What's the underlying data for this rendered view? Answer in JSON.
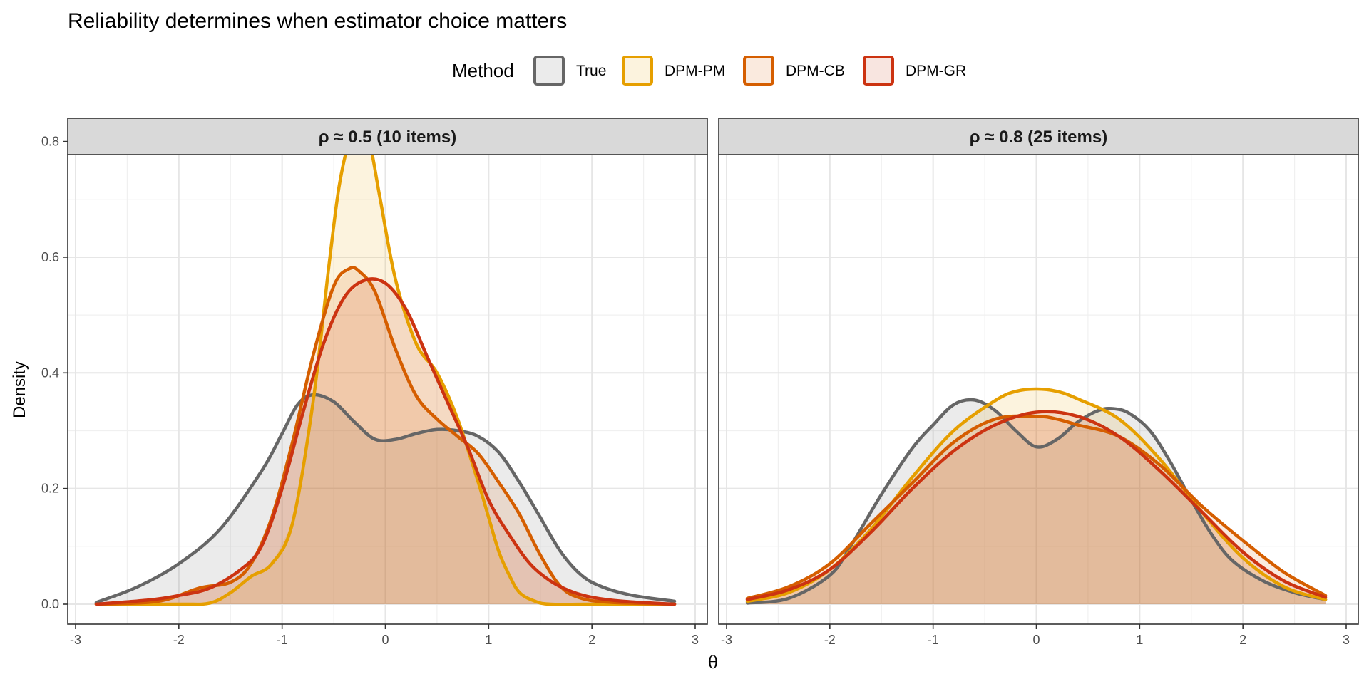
{
  "colors": {
    "True": "#666666",
    "DPM-PM": "#E69F00",
    "DPM-CB": "#D55E00",
    "DPM-GR": "#CC3311"
  },
  "chart_data": {
    "type": "area",
    "title": "Reliability determines when estimator choice matters",
    "xlabel": "θ",
    "ylabel": "Density",
    "legend": {
      "title": "Method",
      "position": "top",
      "entries": [
        "True",
        "DPM-PM",
        "DPM-CB",
        "DPM-GR"
      ]
    },
    "xlim": [
      -3,
      3
    ],
    "ylim": [
      0,
      0.85
    ],
    "xticks": [
      -3,
      -2,
      -1,
      0,
      1,
      2,
      3
    ],
    "yticks": [
      0.0,
      0.2,
      0.4,
      0.6,
      0.8
    ],
    "ytick_labels": [
      "0.0",
      "0.2",
      "0.4",
      "0.6",
      "0.8"
    ],
    "grid": true,
    "panels": [
      {
        "label": "ρ ≈ 0.5  (10 items)",
        "series": [
          {
            "name": "True",
            "x": [
              -2.8,
              -2.4,
              -2.0,
              -1.6,
              -1.2,
              -1.0,
              -0.85,
              -0.7,
              -0.5,
              -0.3,
              -0.1,
              0.1,
              0.3,
              0.5,
              0.7,
              0.9,
              1.1,
              1.3,
              1.5,
              1.7,
              1.9,
              2.1,
              2.4,
              2.8
            ],
            "y": [
              0.003,
              0.03,
              0.07,
              0.13,
              0.23,
              0.295,
              0.345,
              0.362,
              0.35,
              0.315,
              0.285,
              0.285,
              0.295,
              0.302,
              0.3,
              0.29,
              0.262,
              0.21,
              0.15,
              0.09,
              0.05,
              0.03,
              0.015,
              0.005
            ]
          },
          {
            "name": "DPM-PM",
            "x": [
              -2.8,
              -2.0,
              -1.7,
              -1.5,
              -1.3,
              -1.1,
              -0.9,
              -0.7,
              -0.55,
              -0.45,
              -0.35,
              -0.25,
              -0.15,
              -0.05,
              0.1,
              0.3,
              0.5,
              0.7,
              0.9,
              1.0,
              1.1,
              1.2,
              1.3,
              1.45,
              1.6,
              2.0,
              2.8
            ],
            "y": [
              0.0,
              0.0,
              0.002,
              0.02,
              0.048,
              0.07,
              0.14,
              0.35,
              0.58,
              0.72,
              0.8,
              0.826,
              0.795,
              0.7,
              0.56,
              0.45,
              0.4,
              0.32,
              0.21,
              0.15,
              0.09,
              0.05,
              0.02,
              0.005,
              0.0,
              0.0,
              0.0
            ]
          },
          {
            "name": "DPM-CB",
            "x": [
              -2.8,
              -2.2,
              -1.8,
              -1.5,
              -1.3,
              -1.1,
              -0.9,
              -0.7,
              -0.5,
              -0.35,
              -0.25,
              -0.1,
              0.1,
              0.3,
              0.5,
              0.7,
              0.9,
              1.1,
              1.3,
              1.5,
              1.7,
              1.9,
              2.2,
              2.8
            ],
            "y": [
              0.0,
              0.005,
              0.028,
              0.038,
              0.07,
              0.15,
              0.28,
              0.43,
              0.55,
              0.58,
              0.575,
              0.54,
              0.44,
              0.36,
              0.32,
              0.29,
              0.26,
              0.21,
              0.155,
              0.085,
              0.03,
              0.01,
              0.003,
              0.0
            ]
          },
          {
            "name": "DPM-GR",
            "x": [
              -2.8,
              -2.3,
              -2.0,
              -1.7,
              -1.4,
              -1.2,
              -1.0,
              -0.8,
              -0.6,
              -0.4,
              -0.2,
              0.0,
              0.2,
              0.4,
              0.6,
              0.8,
              1.0,
              1.2,
              1.4,
              1.6,
              1.8,
              2.0,
              2.3,
              2.8
            ],
            "y": [
              0.0,
              0.007,
              0.015,
              0.028,
              0.06,
              0.1,
              0.2,
              0.33,
              0.45,
              0.53,
              0.56,
              0.555,
              0.51,
              0.43,
              0.35,
              0.27,
              0.18,
              0.12,
              0.07,
              0.04,
              0.022,
              0.012,
              0.005,
              0.0
            ]
          }
        ]
      },
      {
        "label": "ρ ≈ 0.8  (25 items)",
        "series": [
          {
            "name": "True",
            "x": [
              -2.8,
              -2.4,
              -2.0,
              -1.8,
              -1.5,
              -1.2,
              -1.0,
              -0.8,
              -0.6,
              -0.4,
              -0.2,
              0.0,
              0.2,
              0.4,
              0.6,
              0.75,
              0.9,
              1.1,
              1.3,
              1.5,
              1.7,
              1.9,
              2.2,
              2.5,
              2.8
            ],
            "y": [
              0.002,
              0.01,
              0.05,
              0.1,
              0.19,
              0.27,
              0.31,
              0.345,
              0.353,
              0.335,
              0.3,
              0.272,
              0.285,
              0.315,
              0.335,
              0.338,
              0.33,
              0.3,
              0.245,
              0.18,
              0.12,
              0.075,
              0.04,
              0.02,
              0.008
            ]
          },
          {
            "name": "DPM-PM",
            "x": [
              -2.8,
              -2.4,
              -2.0,
              -1.6,
              -1.2,
              -0.8,
              -0.4,
              -0.2,
              0.0,
              0.2,
              0.4,
              0.8,
              1.2,
              1.6,
              2.0,
              2.4,
              2.8
            ],
            "y": [
              0.005,
              0.02,
              0.06,
              0.13,
              0.22,
              0.3,
              0.352,
              0.368,
              0.372,
              0.368,
              0.355,
              0.32,
              0.25,
              0.16,
              0.08,
              0.03,
              0.008
            ]
          },
          {
            "name": "DPM-CB",
            "x": [
              -2.8,
              -2.4,
              -2.0,
              -1.6,
              -1.2,
              -0.8,
              -0.4,
              0.0,
              0.2,
              0.4,
              0.8,
              1.2,
              1.6,
              2.0,
              2.4,
              2.8
            ],
            "y": [
              0.01,
              0.03,
              0.07,
              0.14,
              0.21,
              0.28,
              0.32,
              0.325,
              0.32,
              0.31,
              0.29,
              0.24,
              0.17,
              0.11,
              0.055,
              0.015
            ]
          },
          {
            "name": "DPM-GR",
            "x": [
              -2.8,
              -2.4,
              -2.0,
              -1.6,
              -1.2,
              -0.8,
              -0.4,
              0.0,
              0.4,
              0.8,
              1.2,
              1.6,
              2.0,
              2.4,
              2.8
            ],
            "y": [
              0.008,
              0.025,
              0.06,
              0.125,
              0.2,
              0.265,
              0.31,
              0.332,
              0.325,
              0.29,
              0.23,
              0.16,
              0.09,
              0.04,
              0.012
            ]
          }
        ]
      }
    ]
  }
}
